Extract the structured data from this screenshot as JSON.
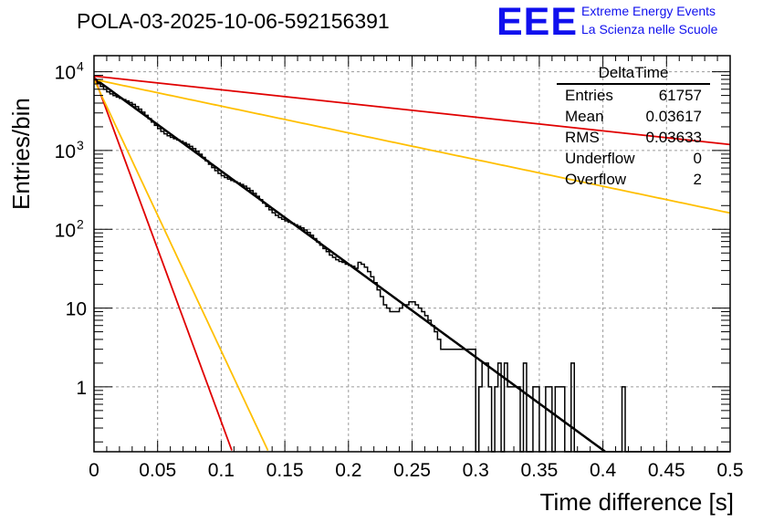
{
  "header": {
    "title": "POLA-03-2025-10-06-592156391",
    "logo": "EEE",
    "logo_line1": "Extreme Energy Events",
    "logo_line2": "La Scienza nelle Scuole"
  },
  "stats": {
    "title": "DeltaTime",
    "rows": [
      {
        "label": "Entries",
        "value": "61757"
      },
      {
        "label": "Mean",
        "value": "0.03617"
      },
      {
        "label": "RMS",
        "value": "0.03633"
      },
      {
        "label": "Underflow",
        "value": "0"
      },
      {
        "label": "Overflow",
        "value": "2"
      }
    ]
  },
  "colors": {
    "histogram": "#000000",
    "fit": "#000000",
    "red_curves": "#e00000",
    "yellow_curves": "#ffbf00",
    "grid": "#9a9a9a"
  },
  "chart_data": {
    "type": "histogram",
    "title": "POLA-03-2025-10-06-592156391",
    "xlabel": "Time difference [s]",
    "ylabel": "Entries/bin",
    "xlim": [
      0,
      0.5
    ],
    "ylim": [
      0.15,
      16000
    ],
    "yscale": "log",
    "grid": true,
    "x_ticks": [
      "0",
      "0.05",
      "0.1",
      "0.15",
      "0.2",
      "0.25",
      "0.3",
      "0.35",
      "0.4",
      "0.45",
      "0.5"
    ],
    "y_ticks": [
      {
        "value": 10000,
        "label": "10",
        "exp": "4"
      },
      {
        "value": 1000,
        "label": "10",
        "exp": "3"
      },
      {
        "value": 100,
        "label": "10",
        "exp": "2"
      },
      {
        "value": 10,
        "label": "10",
        "exp": ""
      },
      {
        "value": 1,
        "label": "1",
        "exp": ""
      }
    ],
    "bin_width": 0.0025,
    "histogram": [
      {
        "x": 0.3025,
        "y": 1
      },
      {
        "x": 0.305,
        "y": 2
      },
      {
        "x": 0.3075,
        "y": 2
      },
      {
        "x": 0.31,
        "y": 1
      },
      {
        "x": 0.315,
        "y": 1
      },
      {
        "x": 0.3175,
        "y": 2
      },
      {
        "x": 0.3225,
        "y": 2
      },
      {
        "x": 0.325,
        "y": 1
      },
      {
        "x": 0.3275,
        "y": 1
      },
      {
        "x": 0.33,
        "y": 1
      },
      {
        "x": 0.3325,
        "y": 1
      },
      {
        "x": 0.3375,
        "y": 2
      },
      {
        "x": 0.345,
        "y": 1
      },
      {
        "x": 0.3475,
        "y": 1
      },
      {
        "x": 0.355,
        "y": 1
      },
      {
        "x": 0.3575,
        "y": 1
      },
      {
        "x": 0.3625,
        "y": 1
      },
      {
        "x": 0.365,
        "y": 1
      },
      {
        "x": 0.3675,
        "y": 1
      },
      {
        "x": 0.375,
        "y": 2
      },
      {
        "x": 0.415,
        "y": 1
      }
    ],
    "histogram_model": {
      "A": 8300,
      "tau": 0.0367,
      "x_start": 0.0,
      "x_end": 0.3
    },
    "series": [
      {
        "name": "fit",
        "color": "#000000",
        "A": 8300,
        "tau": 0.0368
      },
      {
        "name": "slow-red",
        "color": "#e00000",
        "A": 8800,
        "tau": 0.25
      },
      {
        "name": "slow-yellow",
        "color": "#ffbf00",
        "A": 8000,
        "tau": 0.128
      },
      {
        "name": "fast-red",
        "color": "#e00000",
        "A": 8800,
        "tau": 0.0099
      },
      {
        "name": "fast-yellow",
        "color": "#ffbf00",
        "A": 8000,
        "tau": 0.0126
      }
    ]
  }
}
